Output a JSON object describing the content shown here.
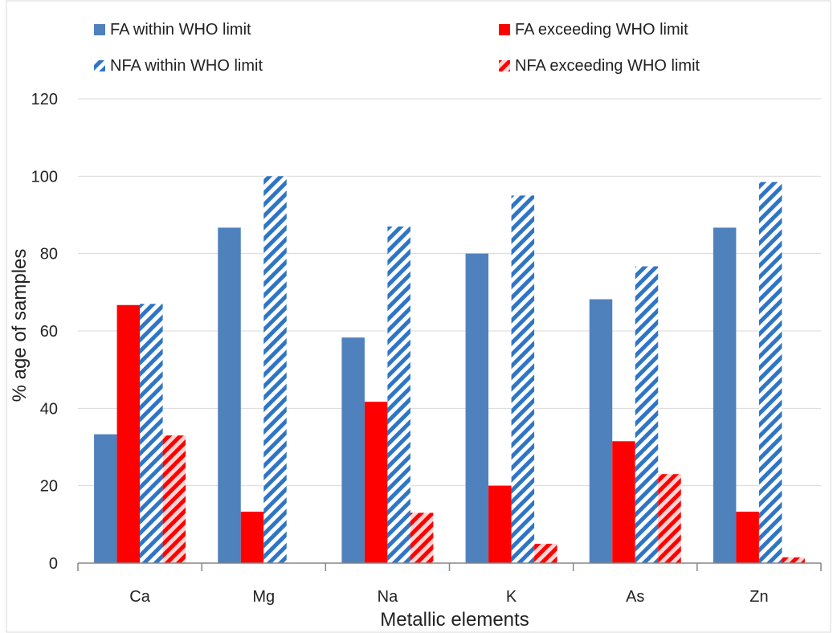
{
  "chart_data": {
    "type": "bar",
    "xlabel": "Metallic elements",
    "ylabel": "% age of samples",
    "ylim": [
      0,
      120
    ],
    "yticks": [
      0,
      20,
      40,
      60,
      80,
      100,
      120
    ],
    "grid": true,
    "legend_position": "top",
    "categories": [
      "Ca",
      "Mg",
      "Na",
      "K",
      "As",
      "Zn"
    ],
    "series": [
      {
        "name": "FA within WHO limit",
        "color": "#4f81bd",
        "pattern": "solid",
        "values": [
          33.3,
          86.7,
          58.3,
          80,
          68.2,
          86.7
        ]
      },
      {
        "name": "FA exceeding WHO limit",
        "color": "#ff0000",
        "pattern": "solid",
        "values": [
          66.7,
          13.3,
          41.7,
          20,
          31.5,
          13.3
        ]
      },
      {
        "name": "NFA within WHO limit",
        "color": "#2e75c6",
        "pattern": "striped",
        "values": [
          67,
          100,
          87,
          95,
          76.7,
          98.5
        ]
      },
      {
        "name": "NFA exceeding WHO limit",
        "color": "#ff0000",
        "pattern": "striped",
        "values": [
          33,
          0,
          13,
          5,
          23,
          1.5
        ]
      }
    ]
  }
}
